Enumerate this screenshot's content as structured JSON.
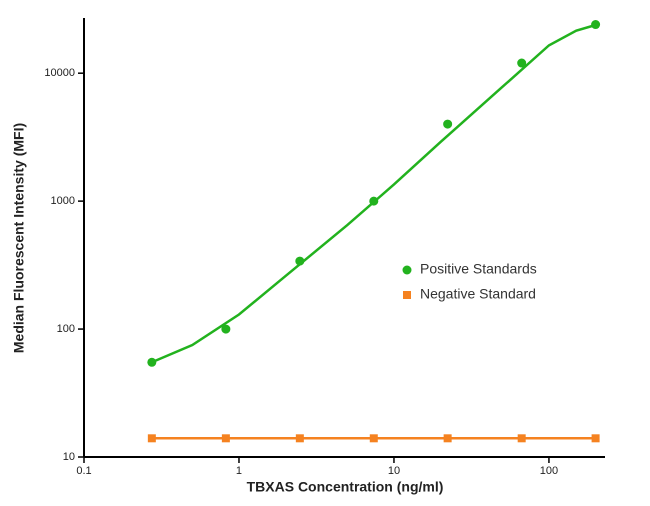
{
  "chart_data": {
    "type": "scatter",
    "x_label": "TBXAS Concentration (ng/ml)",
    "y_label": "Median Fluorescent Intensity (MFI)",
    "x": [
      0.274,
      0.823,
      2.47,
      7.41,
      22.2,
      66.7,
      200
    ],
    "series": [
      {
        "name": "Positive Standards",
        "color": "#22b21e",
        "marker": "circle",
        "values": [
          55,
          100,
          340,
          1000,
          4000,
          12000,
          24000
        ]
      },
      {
        "name": "Negative Standard",
        "color": "#f58220",
        "marker": "square",
        "line": true,
        "values": [
          14,
          14,
          14,
          14,
          14,
          14,
          14
        ]
      }
    ],
    "fit": {
      "color": "#22b21e",
      "x": [
        0.274,
        0.5,
        1,
        2,
        5,
        10,
        20,
        50,
        100,
        150,
        200
      ],
      "values": [
        55,
        75,
        130,
        260,
        650,
        1350,
        2900,
        7800,
        16500,
        21500,
        23800
      ]
    },
    "xscale": "log",
    "yscale": "log",
    "xlim": [
      0.1,
      230
    ],
    "ylim": [
      10,
      27000
    ],
    "xticks": [
      0.1,
      1,
      10,
      100
    ],
    "yticks": [
      10,
      100,
      1000,
      10000
    ],
    "legend": "center-right"
  }
}
